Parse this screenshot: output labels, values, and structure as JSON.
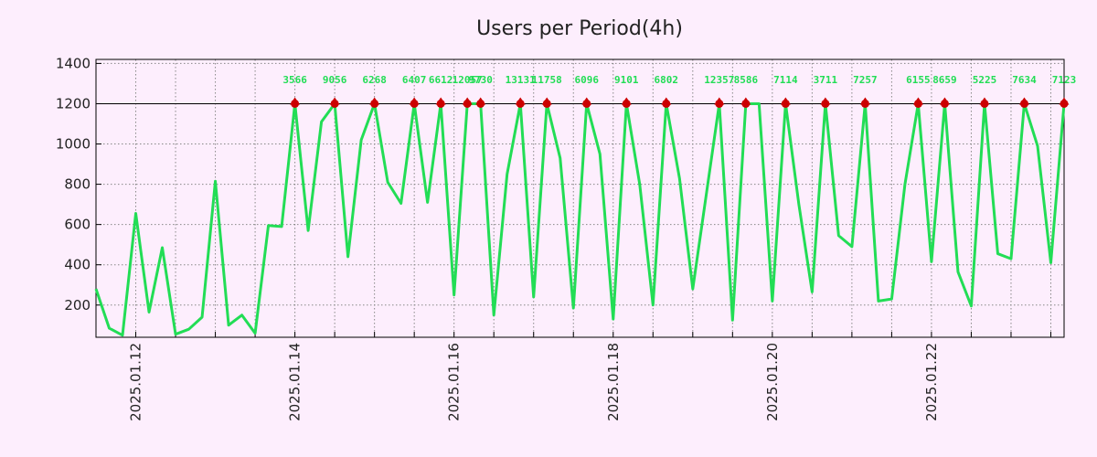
{
  "chart_data": {
    "type": "line",
    "title": "Users per Period(4h)",
    "xlabel": "",
    "ylabel": "",
    "ylim": [
      40,
      1420
    ],
    "yticks": [
      200,
      400,
      600,
      800,
      1000,
      1200,
      1400
    ],
    "x_range": [
      "2025.01.11 12:00",
      "2025.01.23 16:00"
    ],
    "x_tick_labels": [
      "2025.01.12",
      "2025.01.14",
      "2025.01.16",
      "2025.01.18",
      "2025.01.20",
      "2025.01.22"
    ],
    "cap_value": 1200,
    "grid": true,
    "series": [
      {
        "name": "Users",
        "color": "#22dd55",
        "values": [
          280,
          85,
          50,
          655,
          165,
          485,
          55,
          80,
          140,
          815,
          100,
          150,
          60,
          595,
          590,
          1200,
          570,
          1110,
          1200,
          440,
          1020,
          1200,
          810,
          705,
          1200,
          710,
          1200,
          250,
          1200,
          1200,
          150,
          850,
          1200,
          240,
          1200,
          930,
          185,
          1200,
          950,
          130,
          1200,
          800,
          200,
          1200,
          830,
          280,
          740,
          1200,
          125,
          1200,
          1200,
          220,
          1200,
          700,
          265,
          1200,
          545,
          490,
          1200,
          220,
          230,
          800,
          1200,
          415,
          1200,
          365,
          195,
          1200,
          455,
          430,
          1200,
          990,
          410,
          1200
        ]
      }
    ],
    "capped_points": [
      {
        "index": 15,
        "value": "3566"
      },
      {
        "index": 18,
        "value": "9056"
      },
      {
        "index": 21,
        "value": "6268"
      },
      {
        "index": 24,
        "value": "6407"
      },
      {
        "index": 26,
        "value": "6612"
      },
      {
        "index": 28,
        "value": "12057"
      },
      {
        "index": 29,
        "value": "9730"
      },
      {
        "index": 32,
        "value": "13131"
      },
      {
        "index": 34,
        "value": "11758"
      },
      {
        "index": 37,
        "value": "6096"
      },
      {
        "index": 40,
        "value": "9101"
      },
      {
        "index": 43,
        "value": "6802"
      },
      {
        "index": 47,
        "value": "12357"
      },
      {
        "index": 49,
        "value": "8586"
      },
      {
        "index": 52,
        "value": "7114"
      },
      {
        "index": 55,
        "value": "3711"
      },
      {
        "index": 58,
        "value": "7257"
      },
      {
        "index": 62,
        "value": "6155"
      },
      {
        "index": 64,
        "value": "8659"
      },
      {
        "index": 67,
        "value": "5225"
      },
      {
        "index": 70,
        "value": "7634"
      },
      {
        "index": 73,
        "value": "7123"
      }
    ],
    "marker_color": "#cc0000",
    "label_color": "#22dd55",
    "cap_line_color": "#000000"
  }
}
